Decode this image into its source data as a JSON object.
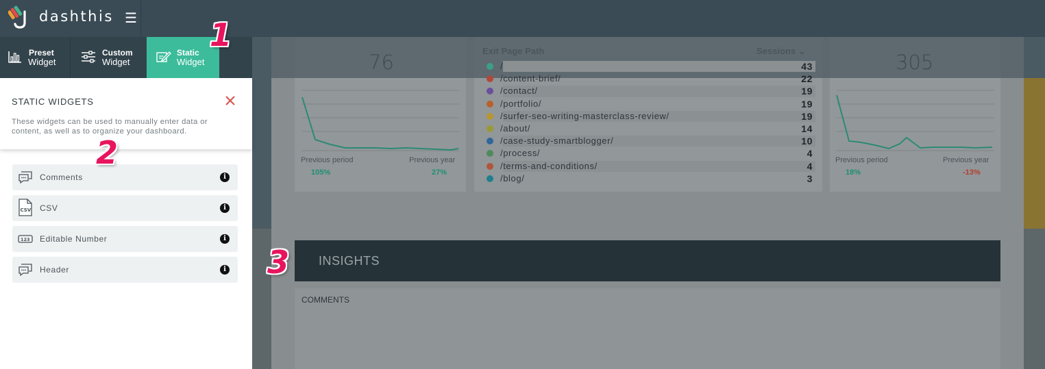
{
  "app": {
    "brand": "dashthis",
    "menu_icon": "hamburger-icon"
  },
  "tabs": [
    {
      "line1": "Preset",
      "line2": "Widget",
      "icon": "bar-chart-icon"
    },
    {
      "line1": "Custom",
      "line2": "Widget",
      "icon": "sliders-icon"
    },
    {
      "line1": "Static",
      "line2": "Widget",
      "icon": "edit-icon",
      "active": true
    }
  ],
  "panel": {
    "title": "STATIC WIDGETS",
    "description": "These widgets can be used to manually enter data or content, as well as to organize your dashboard.",
    "items": [
      {
        "label": "Comments",
        "icon": "comment-icon"
      },
      {
        "label": "CSV",
        "icon": "csv-file-icon"
      },
      {
        "label": "Editable Number",
        "icon": "number-icon"
      },
      {
        "label": "Header",
        "icon": "comment-icon"
      }
    ]
  },
  "dashboard": {
    "kpi_left": {
      "value": "76",
      "prev_period_label": "Previous period",
      "prev_period_value": "105%",
      "prev_year_label": "Previous year",
      "prev_year_value": "27%"
    },
    "kpi_right": {
      "value": "305",
      "prev_period_label": "Previous period",
      "prev_period_value": "18%",
      "prev_year_label": "Previous year",
      "prev_year_value": "-13%"
    },
    "table": {
      "col_path": "Exit Page Path",
      "col_sessions": "Sessions",
      "rows": [
        {
          "path": "/",
          "value": "43",
          "color": "#3d9f88"
        },
        {
          "path": "/content-brief/",
          "value": "22",
          "color": "#b0483c"
        },
        {
          "path": "/contact/",
          "value": "19",
          "color": "#6a4f9c"
        },
        {
          "path": "/portfolio/",
          "value": "19",
          "color": "#b8612b"
        },
        {
          "path": "/surfer-seo-writing-masterclass-review/",
          "value": "19",
          "color": "#b89530"
        },
        {
          "path": "/about/",
          "value": "14",
          "color": "#9a9a34"
        },
        {
          "path": "/case-study-smartblogger/",
          "value": "10",
          "color": "#2f679a"
        },
        {
          "path": "/process/",
          "value": "4",
          "color": "#4f8a5c"
        },
        {
          "path": "/terms-and-conditions/",
          "value": "4",
          "color": "#b0563a"
        },
        {
          "path": "/blog/",
          "value": "3",
          "color": "#1f7f8d"
        }
      ]
    },
    "insights_title": "INSIGHTS",
    "comments_label": "COMMENTS"
  },
  "callouts": [
    "1",
    "2",
    "3"
  ],
  "colors": {
    "accent": "#3cbc9b",
    "topbar": "#3a4b55",
    "close": "#d9534f",
    "callout": "#e8145d"
  }
}
